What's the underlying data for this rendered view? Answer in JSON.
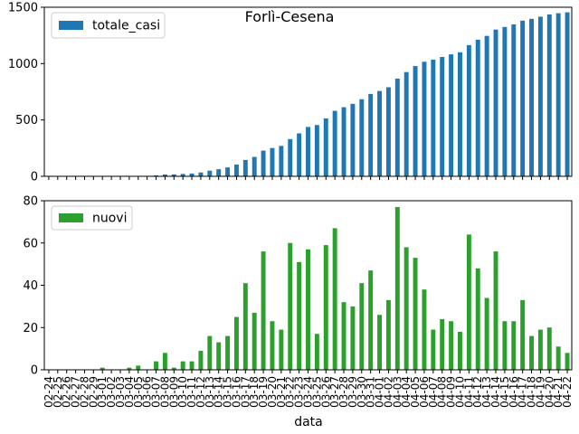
{
  "chart_data": [
    {
      "type": "bar",
      "title": "Forlì-Cesena",
      "xlabel": "",
      "ylabel": "",
      "ylim": [
        0,
        1500
      ],
      "yticks": [
        0,
        500,
        1000,
        1500
      ],
      "grid": false,
      "legend_position": "top-left",
      "color": "#1f77b4",
      "categories": [
        "02-24",
        "02-25",
        "02-26",
        "02-27",
        "02-28",
        "02-29",
        "03-01",
        "03-02",
        "03-03",
        "03-04",
        "03-05",
        "03-06",
        "03-07",
        "03-08",
        "03-09",
        "03-10",
        "03-11",
        "03-12",
        "03-13",
        "03-14",
        "03-15",
        "03-16",
        "03-17",
        "03-18",
        "03-19",
        "03-20",
        "03-21",
        "03-22",
        "03-23",
        "03-24",
        "03-25",
        "03-26",
        "03-27",
        "03-28",
        "03-29",
        "03-30",
        "03-31",
        "04-01",
        "04-02",
        "04-03",
        "04-04",
        "04-05",
        "04-06",
        "04-07",
        "04-08",
        "04-09",
        "04-10",
        "04-11",
        "04-12",
        "04-13",
        "04-14",
        "04-15",
        "04-16",
        "04-17",
        "04-18",
        "04-19",
        "04-20",
        "04-21",
        "04-22"
      ],
      "series": [
        {
          "name": "totale_casi",
          "values": [
            0,
            0,
            0,
            0,
            0,
            0,
            1,
            1,
            1,
            2,
            4,
            4,
            8,
            16,
            17,
            21,
            25,
            34,
            50,
            63,
            79,
            104,
            145,
            172,
            228,
            251,
            270,
            330,
            381,
            438,
            455,
            514,
            581,
            613,
            643,
            684,
            731,
            757,
            790,
            867,
            925,
            978,
            1016,
            1035,
            1059,
            1082,
            1100,
            1164,
            1212,
            1246,
            1302,
            1325,
            1348,
            1381,
            1397,
            1416,
            1436,
            1447,
            1455
          ]
        }
      ]
    },
    {
      "type": "bar",
      "xlabel": "data",
      "ylabel": "",
      "ylim": [
        0,
        80
      ],
      "yticks": [
        0,
        20,
        40,
        60,
        80
      ],
      "grid": false,
      "legend_position": "top-left",
      "color": "#2ca02c",
      "categories": [
        "02-24",
        "02-25",
        "02-26",
        "02-27",
        "02-28",
        "02-29",
        "03-01",
        "03-02",
        "03-03",
        "03-04",
        "03-05",
        "03-06",
        "03-07",
        "03-08",
        "03-09",
        "03-10",
        "03-11",
        "03-12",
        "03-13",
        "03-14",
        "03-15",
        "03-16",
        "03-17",
        "03-18",
        "03-19",
        "03-20",
        "03-21",
        "03-22",
        "03-23",
        "03-24",
        "03-25",
        "03-26",
        "03-27",
        "03-28",
        "03-29",
        "03-30",
        "03-31",
        "04-01",
        "04-02",
        "04-03",
        "04-04",
        "04-05",
        "04-06",
        "04-07",
        "04-08",
        "04-09",
        "04-10",
        "04-11",
        "04-12",
        "04-13",
        "04-14",
        "04-15",
        "04-16",
        "04-17",
        "04-18",
        "04-19",
        "04-20",
        "04-21",
        "04-22"
      ],
      "series": [
        {
          "name": "nuovi",
          "values": [
            0,
            0,
            0,
            0,
            0,
            0,
            1,
            0,
            0,
            1,
            2,
            0,
            4,
            8,
            1,
            4,
            4,
            9,
            16,
            13,
            16,
            25,
            41,
            27,
            56,
            23,
            19,
            60,
            51,
            57,
            17,
            59,
            67,
            32,
            30,
            41,
            47,
            26,
            33,
            77,
            58,
            53,
            38,
            19,
            24,
            23,
            18,
            64,
            48,
            34,
            56,
            23,
            23,
            33,
            16,
            19,
            20,
            11,
            8
          ]
        }
      ]
    }
  ]
}
